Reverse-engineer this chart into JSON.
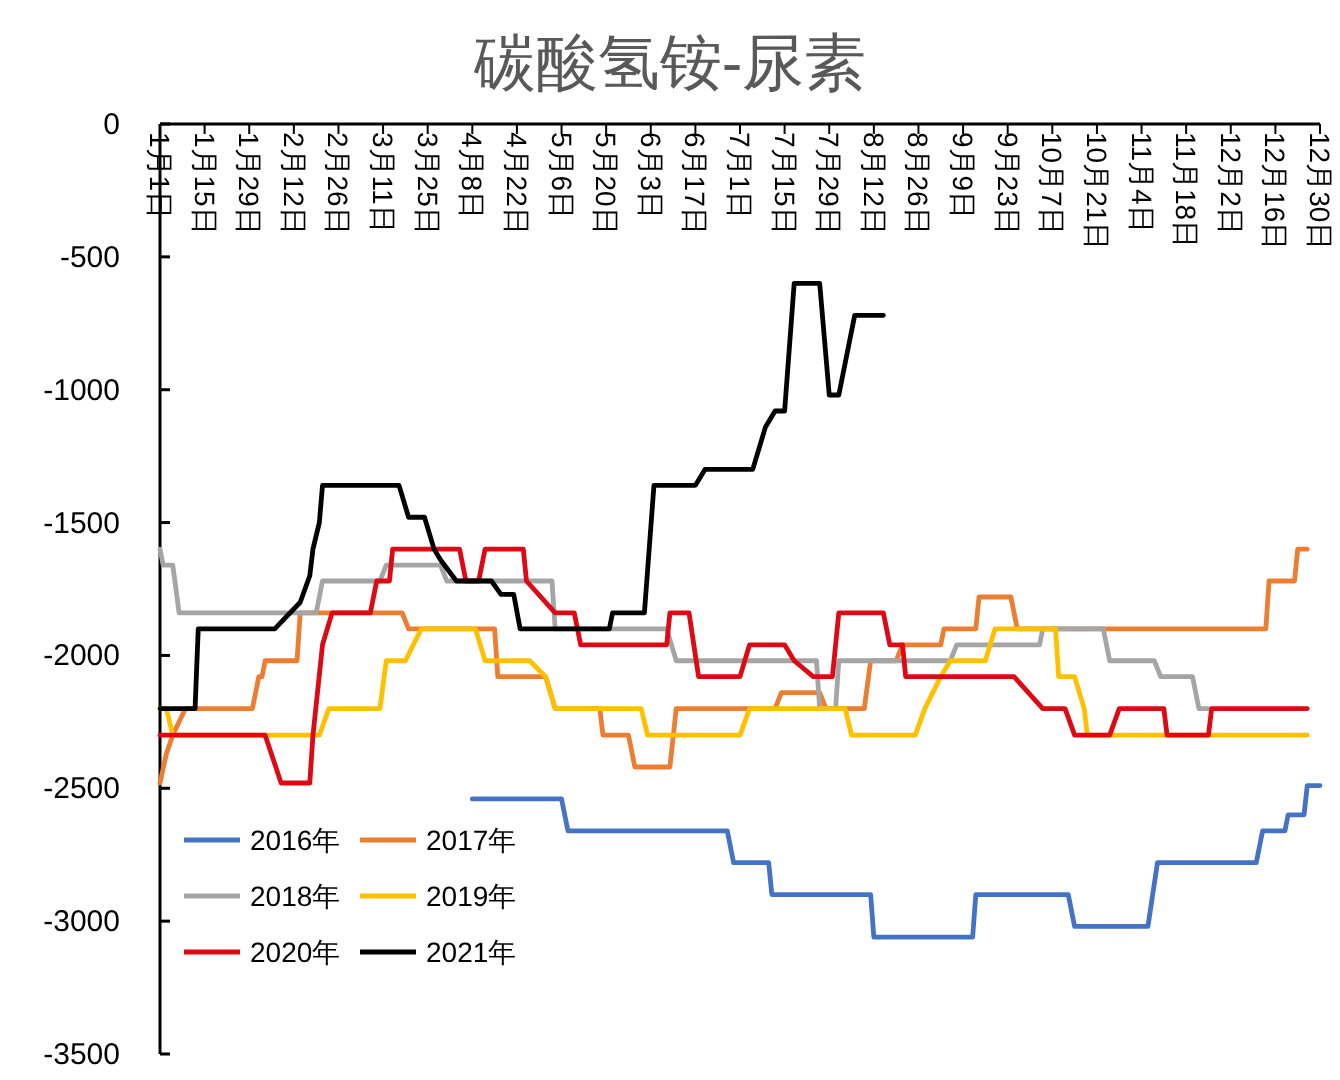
{
  "chart_data": {
    "type": "line",
    "title": "碳酸氢铵-尿素",
    "xlim": [
      "--01-01",
      "--12-30"
    ],
    "xticks": [
      {
        "value": "--01-01",
        "label": "1月1日"
      },
      {
        "value": "--01-15",
        "label": "1月15日"
      },
      {
        "value": "--01-29",
        "label": "1月29日"
      },
      {
        "value": "--02-12",
        "label": "2月12日"
      },
      {
        "value": "--02-26",
        "label": "2月26日"
      },
      {
        "value": "--03-11",
        "label": "3月11日"
      },
      {
        "value": "--03-25",
        "label": "3月25日"
      },
      {
        "value": "--04-08",
        "label": "4月8日"
      },
      {
        "value": "--04-22",
        "label": "4月22日"
      },
      {
        "value": "--05-06",
        "label": "5月6日"
      },
      {
        "value": "--05-20",
        "label": "5月20日"
      },
      {
        "value": "--06-03",
        "label": "6月3日"
      },
      {
        "value": "--06-17",
        "label": "6月17日"
      },
      {
        "value": "--07-01",
        "label": "7月1日"
      },
      {
        "value": "--07-15",
        "label": "7月15日"
      },
      {
        "value": "--07-29",
        "label": "7月29日"
      },
      {
        "value": "--08-12",
        "label": "8月12日"
      },
      {
        "value": "--08-26",
        "label": "8月26日"
      },
      {
        "value": "--09-09",
        "label": "9月9日"
      },
      {
        "value": "--09-23",
        "label": "9月23日"
      },
      {
        "value": "--10-07",
        "label": "10月7日"
      },
      {
        "value": "--10-21",
        "label": "10月21日"
      },
      {
        "value": "--11-04",
        "label": "11月4日"
      },
      {
        "value": "--11-18",
        "label": "11月18日"
      },
      {
        "value": "--12-02",
        "label": "12月2日"
      },
      {
        "value": "--12-16",
        "label": "12月16日"
      },
      {
        "value": "--12-30",
        "label": "12月30日"
      }
    ],
    "ylim": [
      -3500,
      0
    ],
    "yticks": [
      -3500,
      -3000,
      -2500,
      -2000,
      -1500,
      -1000,
      -500,
      0
    ],
    "legend": "bottom left",
    "marker": "none",
    "line_style": "solid",
    "series": [
      {
        "name": "2016年",
        "color": "#4472c4",
        "x": [
          "--04-08",
          "--05-06",
          "--05-08",
          "--06-27",
          "--06-29",
          "--07-10",
          "--07-11",
          "--08-11",
          "--08-12",
          "--09-12",
          "--09-13",
          "--10-12",
          "--10-14",
          "--11-06",
          "--11-09",
          "--12-10",
          "--12-12",
          "--12-19",
          "--12-20",
          "--12-25",
          "--12-26",
          "--12-30"
        ],
        "values": [
          -2540,
          -2540,
          -2660,
          -2660,
          -2780,
          -2780,
          -2900,
          -2900,
          -3060,
          -3060,
          -2900,
          -2900,
          -3020,
          -3020,
          -2780,
          -2780,
          -2660,
          -2660,
          -2600,
          -2600,
          -2490,
          -2490
        ]
      },
      {
        "name": "2017年",
        "color": "#ed7d31",
        "x": [
          "--01-01",
          "--01-03",
          "--01-05",
          "--01-09",
          "--01-30",
          "--02-01",
          "--02-02",
          "--02-03",
          "--02-13",
          "--02-14",
          "--03-17",
          "--03-19",
          "--04-15",
          "--04-16",
          "--05-01",
          "--05-04",
          "--05-18",
          "--05-19",
          "--05-27",
          "--05-29",
          "--06-09",
          "--06-11",
          "--07-12",
          "--07-14",
          "--07-26",
          "--07-28",
          "--08-09",
          "--08-11",
          "--08-19",
          "--08-21",
          "--09-02",
          "--09-03",
          "--09-13",
          "--09-14",
          "--09-24",
          "--09-26",
          "--12-13",
          "--12-14",
          "--12-22",
          "--12-23",
          "--12-26"
        ],
        "values": [
          -2480,
          -2370,
          -2300,
          -2200,
          -2200,
          -2080,
          -2080,
          -2020,
          -2020,
          -1840,
          -1840,
          -1900,
          -1900,
          -2080,
          -2080,
          -2200,
          -2200,
          -2300,
          -2300,
          -2420,
          -2420,
          -2200,
          -2200,
          -2140,
          -2140,
          -2200,
          -2200,
          -2020,
          -2020,
          -1960,
          -1960,
          -1900,
          -1900,
          -1780,
          -1780,
          -1900,
          -1900,
          -1720,
          -1720,
          -1600,
          -1600
        ]
      },
      {
        "name": "2018年",
        "color": "#a5a5a5",
        "x": [
          "--01-01",
          "--01-02",
          "--01-05",
          "--01-07",
          "--02-19",
          "--02-21",
          "--03-10",
          "--03-12",
          "--03-29",
          "--03-31",
          "--05-03",
          "--05-04",
          "--06-08",
          "--06-11",
          "--07-25",
          "--07-26",
          "--07-31",
          "--08-01",
          "--09-05",
          "--09-07",
          "--10-03",
          "--10-04",
          "--10-23",
          "--10-25",
          "--11-08",
          "--11-10",
          "--11-20",
          "--11-22",
          "--11-25"
        ],
        "values": [
          -1600,
          -1660,
          -1660,
          -1840,
          -1840,
          -1720,
          -1720,
          -1660,
          -1660,
          -1720,
          -1720,
          -1900,
          -1900,
          -2020,
          -2020,
          -2200,
          -2200,
          -2020,
          -2020,
          -1960,
          -1960,
          -1900,
          -1900,
          -2020,
          -2020,
          -2080,
          -2080,
          -2200,
          -2200
        ]
      },
      {
        "name": "2019年",
        "color": "#ffc000",
        "x": [
          "--01-01",
          "--01-03",
          "--01-05",
          "--02-20",
          "--02-23",
          "--03-10",
          "--03-12",
          "--03-18",
          "--03-23",
          "--04-09",
          "--04-12",
          "--04-26",
          "--05-01",
          "--05-04",
          "--05-31",
          "--06-02",
          "--07-01",
          "--07-04",
          "--08-03",
          "--08-05",
          "--08-25",
          "--08-28",
          "--09-02",
          "--09-05",
          "--09-16",
          "--09-19",
          "--10-08",
          "--10-09",
          "--10-14",
          "--10-17",
          "--10-18",
          "--12-26"
        ],
        "values": [
          -2200,
          -2200,
          -2300,
          -2300,
          -2200,
          -2200,
          -2020,
          -2020,
          -1900,
          -1900,
          -2020,
          -2020,
          -2080,
          -2200,
          -2200,
          -2300,
          -2300,
          -2200,
          -2200,
          -2300,
          -2300,
          -2200,
          -2080,
          -2020,
          -2020,
          -1900,
          -1900,
          -2080,
          -2080,
          -2200,
          -2300,
          -2300
        ]
      },
      {
        "name": "2020年",
        "color": "#dd0a14",
        "x": [
          "--01-01",
          "--02-03",
          "--02-08",
          "--02-17",
          "--02-18",
          "--02-21",
          "--02-24",
          "--03-07",
          "--03-09",
          "--03-13",
          "--03-14",
          "--04-04",
          "--04-06",
          "--04-10",
          "--04-12",
          "--04-24",
          "--04-25",
          "--05-04",
          "--05-10",
          "--05-12",
          "--06-08",
          "--06-09",
          "--06-15",
          "--06-18",
          "--07-01",
          "--07-04",
          "--07-15",
          "--07-18",
          "--07-24",
          "--07-30",
          "--08-01",
          "--08-15",
          "--08-17",
          "--08-21",
          "--08-22",
          "--09-25",
          "--10-04",
          "--10-11",
          "--10-14",
          "--10-25",
          "--10-28",
          "--11-11",
          "--11-12",
          "--11-25",
          "--11-26",
          "--12-26"
        ],
        "values": [
          -2300,
          -2300,
          -2480,
          -2480,
          -2300,
          -1960,
          -1840,
          -1840,
          -1720,
          -1720,
          -1600,
          -1600,
          -1720,
          -1720,
          -1600,
          -1600,
          -1720,
          -1840,
          -1840,
          -1960,
          -1960,
          -1840,
          -1840,
          -2080,
          -2080,
          -1960,
          -1960,
          -2020,
          -2080,
          -2080,
          -1840,
          -1840,
          -1960,
          -1960,
          -2080,
          -2080,
          -2200,
          -2200,
          -2300,
          -2300,
          -2200,
          -2200,
          -2300,
          -2300,
          -2200,
          -2200
        ]
      },
      {
        "name": "2021年",
        "color": "#000000",
        "x": [
          "--01-01",
          "--01-12",
          "--01-13",
          "--02-06",
          "--02-14",
          "--02-17",
          "--02-18",
          "--02-20",
          "--02-21",
          "--03-16",
          "--03-19",
          "--03-24",
          "--03-27",
          "--03-29",
          "--04-03",
          "--04-14",
          "--04-17",
          "--04-21",
          "--04-23",
          "--05-21",
          "--05-22",
          "--06-01",
          "--06-04",
          "--06-17",
          "--06-20",
          "--07-05",
          "--07-09",
          "--07-12",
          "--07-15",
          "--07-18",
          "--07-26",
          "--07-29",
          "--08-01",
          "--08-06",
          "--08-15"
        ],
        "values": [
          -2200,
          -2200,
          -1900,
          -1900,
          -1800,
          -1700,
          -1600,
          -1500,
          -1360,
          -1360,
          -1480,
          -1480,
          -1600,
          -1640,
          -1720,
          -1720,
          -1770,
          -1770,
          -1900,
          -1900,
          -1840,
          -1840,
          -1360,
          -1360,
          -1300,
          -1300,
          -1140,
          -1080,
          -1080,
          -600,
          -600,
          -1020,
          -1020,
          -720,
          -720
        ]
      }
    ]
  }
}
